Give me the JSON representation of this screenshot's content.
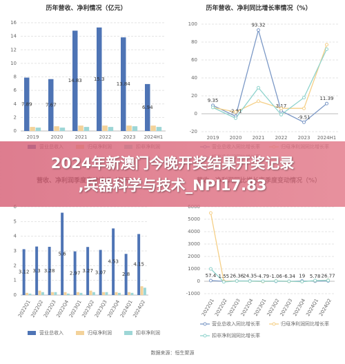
{
  "chart_data": [
    {
      "type": "bar",
      "title": "历年营收、净利情况（亿元）",
      "categories": [
        "2019",
        "2020",
        "2021",
        "2022",
        "2023",
        "2024H1"
      ],
      "series": [
        {
          "name": "营业总收入",
          "color": "#4e74b5",
          "labels": true,
          "values": [
            7.89,
            7.67,
            14.83,
            15.3,
            13.84,
            6.94
          ]
        },
        {
          "name": "归母净利润",
          "color": "#f3d29a",
          "labels": false,
          "values": [
            0.6,
            0.7,
            0.8,
            0.8,
            0.8,
            0.8
          ]
        },
        {
          "name": "扣非净利润",
          "color": "#9dd6d6",
          "labels": false,
          "values": [
            0.5,
            0.5,
            0.6,
            0.6,
            0.7,
            0.6
          ]
        }
      ],
      "ylim": [
        0,
        16
      ],
      "yticks": [
        0,
        2,
        4,
        6,
        8,
        10,
        12,
        14,
        16
      ],
      "grid": true,
      "legend": "bottom"
    },
    {
      "type": "line",
      "title": "历年营收、净利同比增长率情况（%）",
      "categories": [
        "2019",
        "2020",
        "2021",
        "2022",
        "2023",
        "2024H1"
      ],
      "series": [
        {
          "name": "营业总收入同比增长率",
          "color": "#7b98c6",
          "labels": true,
          "values": [
            9.35,
            -2.81,
            93.32,
            3.17,
            -9.51,
            11.39
          ]
        },
        {
          "name": "归母净利润同比增长率",
          "color": "#f5cf86",
          "labels": false,
          "values": [
            7,
            2,
            14,
            6,
            6,
            77
          ]
        },
        {
          "name": "扣非净利润同比增长率",
          "color": "#8fd3cd",
          "labels": false,
          "values": [
            7,
            -5,
            29,
            -1,
            18,
            72
          ]
        }
      ],
      "ylim": [
        -20,
        100
      ],
      "yticks": [
        -20,
        0,
        20,
        40,
        60,
        80,
        100
      ],
      "grid": true,
      "legend": "bottom"
    },
    {
      "type": "bar",
      "title": "营收、净利润季度变动情况（亿元）",
      "categories": [
        "2022Q1",
        "2022Q2",
        "2022Q3",
        "2022Q4",
        "2023Q1",
        "2023Q2",
        "2023Q3",
        "2023Q4",
        "2024Q1",
        "2024Q2"
      ],
      "series": [
        {
          "name": "营业总收入",
          "color": "#4e74b5",
          "labels": true,
          "values": [
            3.12,
            3.3,
            3.28,
            5.6,
            2.97,
            3.27,
            3.07,
            4.53,
            2.8,
            4.15
          ]
        },
        {
          "name": "归母净利润",
          "color": "#f3d29a",
          "labels": false,
          "values": [
            0.15,
            0.3,
            0.2,
            0.2,
            0.2,
            0.3,
            0.2,
            0.2,
            0.2,
            0.6
          ]
        },
        {
          "name": "扣非净利润",
          "color": "#9dd6d6",
          "labels": false,
          "values": [
            0.1,
            0.2,
            0.2,
            0.1,
            0.15,
            0.2,
            0.2,
            0.15,
            0.15,
            0.5
          ]
        }
      ],
      "ylim": [
        0,
        6
      ],
      "yticks": [
        0,
        1,
        2,
        3,
        4,
        5,
        6
      ],
      "grid": true,
      "legend": "bottom"
    },
    {
      "type": "line",
      "title": "营收、净利润同比增长率季度变动情况（%）",
      "categories": [
        "2022Q1",
        "2022Q2",
        "2022Q3",
        "2022Q4",
        "2023Q1",
        "2023Q2",
        "2023Q3",
        "2023Q4",
        "2024Q1",
        "2024Q2"
      ],
      "series": [
        {
          "name": "营业总收入同比增长率",
          "color": "#7b98c6",
          "labels": true,
          "values": [
            57.4,
            1.55,
            26.36,
            24.35,
            -4.79,
            -1.06,
            -6.34,
            19.0,
            5.78,
            26.77
          ]
        },
        {
          "name": "归母净利润同比增长率",
          "color": "#f5cf86",
          "labels": false,
          "values": [
            5500,
            0,
            20,
            10,
            -20,
            30,
            -10,
            -30,
            50,
            80
          ]
        },
        {
          "name": "扣非净利润同比增长率",
          "color": "#8fd3cd",
          "labels": false,
          "values": [
            1000,
            -50,
            20,
            10,
            0,
            20,
            0,
            -30,
            60,
            70
          ]
        }
      ],
      "ylim": [
        -1000,
        6000
      ],
      "yticks": [
        -1000,
        0,
        1000,
        2000,
        3000,
        4000,
        5000,
        6000
      ],
      "grid": true,
      "legend": "bottom"
    }
  ],
  "banner": {
    "line1": "2024年新澳门今晚开奖结果开奖记录",
    "line2": ",兵器科学与技术_NPI17.83"
  },
  "source": "数据来源：恒生聚源"
}
